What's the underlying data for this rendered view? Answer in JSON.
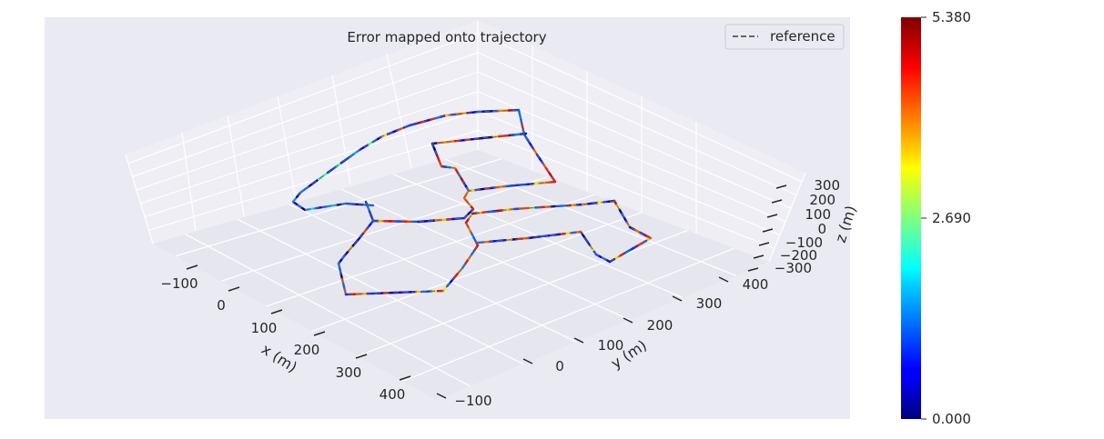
{
  "chart_data": {
    "type": "line",
    "title": "Error mapped onto trajectory",
    "xlabel": "x (m)",
    "ylabel": "y (m)",
    "zlabel": "z (m)",
    "x_ticks": [
      "−100",
      "0",
      "100",
      "200",
      "300",
      "400"
    ],
    "y_ticks": [
      "−100",
      "0",
      "100",
      "200",
      "300",
      "400"
    ],
    "z_ticks": [
      "−300",
      "−200",
      "−100",
      "0",
      "100",
      "200",
      "300"
    ],
    "legend": {
      "label": "reference",
      "position": "top-right",
      "style": "dashed",
      "color": "#666666"
    },
    "colorbar": {
      "colormap": "jet",
      "min": 0.0,
      "max": 5.38,
      "ticks": [
        "0.000",
        "2.690",
        "5.380"
      ]
    },
    "background": "#eaeaf2",
    "grid": true,
    "trajectory_polylines": [
      [
        [
          410,
          226
        ],
        [
          380,
          224
        ],
        [
          335,
          231
        ],
        [
          322,
          222
        ],
        [
          330,
          212
        ],
        [
          360,
          190
        ],
        [
          395,
          165
        ],
        [
          420,
          150
        ],
        [
          450,
          138
        ],
        [
          490,
          127
        ],
        [
          525,
          123
        ],
        [
          570,
          121
        ],
        [
          576,
          148
        ],
        [
          590,
          170
        ],
        [
          610,
          200
        ],
        [
          555,
          205
        ],
        [
          515,
          210
        ],
        [
          500,
          185
        ],
        [
          485,
          183
        ],
        [
          475,
          158
        ],
        [
          530,
          152
        ],
        [
          578,
          147
        ]
      ],
      [
        [
          402,
          222
        ],
        [
          410,
          243
        ],
        [
          395,
          262
        ],
        [
          378,
          282
        ],
        [
          372,
          290
        ],
        [
          380,
          324
        ],
        [
          487,
          320
        ],
        [
          508,
          295
        ],
        [
          525,
          270
        ],
        [
          512,
          245
        ],
        [
          519,
          235
        ],
        [
          565,
          230
        ],
        [
          640,
          225
        ],
        [
          675,
          221
        ],
        [
          692,
          250
        ],
        [
          715,
          262
        ],
        [
          670,
          288
        ],
        [
          655,
          280
        ],
        [
          638,
          255
        ],
        [
          580,
          262
        ],
        [
          525,
          267
        ]
      ],
      [
        [
          410,
          243
        ],
        [
          460,
          244
        ],
        [
          510,
          240
        ],
        [
          520,
          230
        ],
        [
          510,
          218
        ],
        [
          514,
          211
        ]
      ]
    ]
  }
}
